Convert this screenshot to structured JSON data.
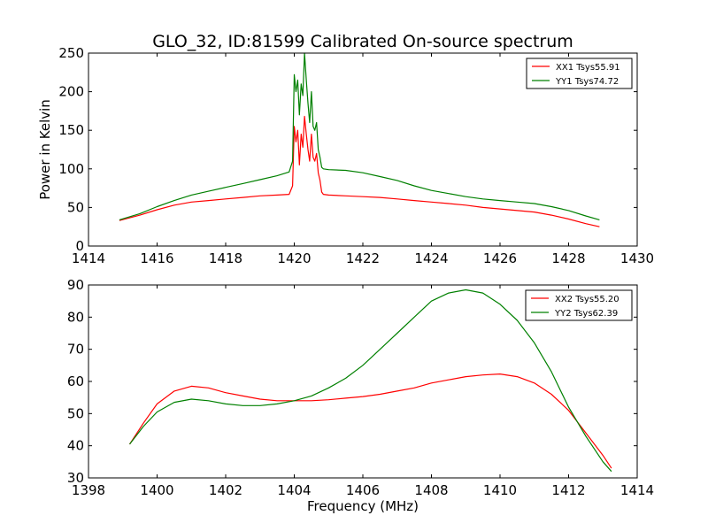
{
  "figure": {
    "title": "GLO_32, ID:81599 Calibrated On-source spectrum"
  },
  "chart_data": [
    {
      "type": "line",
      "title": "GLO_32, ID:81599 Calibrated On-source spectrum",
      "xlabel": "",
      "ylabel": "Power in Kelvin",
      "xlim": [
        1414,
        1430
      ],
      "ylim": [
        0,
        250
      ],
      "x_ticks": [
        1414,
        1416,
        1418,
        1420,
        1422,
        1424,
        1426,
        1428,
        1430
      ],
      "y_ticks": [
        0,
        50,
        100,
        150,
        200,
        250
      ],
      "grid": false,
      "legend_position": "top-right",
      "series": [
        {
          "name": "XX1 Tsys55.91",
          "color": "#ff0000",
          "x": [
            1414.9,
            1415.5,
            1416,
            1416.5,
            1417,
            1417.5,
            1418,
            1418.5,
            1419,
            1419.5,
            1419.85,
            1419.95,
            1420.0,
            1420.05,
            1420.1,
            1420.15,
            1420.2,
            1420.25,
            1420.3,
            1420.35,
            1420.4,
            1420.45,
            1420.5,
            1420.55,
            1420.6,
            1420.65,
            1420.7,
            1420.75,
            1420.8,
            1420.85,
            1421,
            1421.5,
            1422,
            1422.5,
            1423,
            1423.5,
            1424,
            1424.5,
            1425,
            1425.5,
            1426,
            1426.5,
            1427,
            1427.5,
            1428,
            1428.5,
            1428.9
          ],
          "values": [
            33,
            40,
            47,
            53,
            57,
            59,
            61,
            63,
            65,
            66,
            67,
            78,
            155,
            135,
            150,
            105,
            145,
            128,
            168,
            145,
            125,
            110,
            145,
            115,
            110,
            120,
            95,
            85,
            70,
            67,
            66,
            65,
            64,
            63,
            61,
            59,
            57,
            55,
            53,
            50,
            48,
            46,
            44,
            40,
            35,
            29,
            25
          ]
        },
        {
          "name": "YY1 Tsys74.72",
          "color": "#008000",
          "x": [
            1414.9,
            1415.5,
            1416,
            1416.5,
            1417,
            1417.5,
            1418,
            1418.5,
            1419,
            1419.5,
            1419.85,
            1419.95,
            1420.0,
            1420.05,
            1420.1,
            1420.15,
            1420.2,
            1420.25,
            1420.3,
            1420.35,
            1420.4,
            1420.45,
            1420.5,
            1420.55,
            1420.6,
            1420.65,
            1420.7,
            1420.75,
            1420.8,
            1420.85,
            1421,
            1421.5,
            1422,
            1422.5,
            1423,
            1423.5,
            1424,
            1424.5,
            1425,
            1425.5,
            1426,
            1426.5,
            1427,
            1427.5,
            1428,
            1428.5,
            1428.9
          ],
          "values": [
            34,
            42,
            51,
            59,
            66,
            71,
            76,
            81,
            86,
            91,
            96,
            110,
            222,
            200,
            215,
            170,
            210,
            195,
            250,
            215,
            185,
            160,
            200,
            155,
            150,
            160,
            125,
            115,
            102,
            100,
            99,
            98,
            95,
            90,
            85,
            78,
            72,
            68,
            64,
            61,
            59,
            57,
            55,
            51,
            46,
            39,
            34
          ]
        }
      ]
    },
    {
      "type": "line",
      "title": "",
      "xlabel": "Frequency (MHz)",
      "ylabel": "",
      "xlim": [
        1398,
        1414
      ],
      "ylim": [
        30,
        90
      ],
      "x_ticks": [
        1398,
        1400,
        1402,
        1404,
        1406,
        1408,
        1410,
        1412,
        1414
      ],
      "y_ticks": [
        30,
        40,
        50,
        60,
        70,
        80,
        90
      ],
      "grid": false,
      "legend_position": "top-right",
      "series": [
        {
          "name": "XX2 Tsys55.20",
          "color": "#ff0000",
          "x": [
            1399.2,
            1399.6,
            1400,
            1400.5,
            1401,
            1401.5,
            1402,
            1402.5,
            1403,
            1403.5,
            1404,
            1404.5,
            1405,
            1405.5,
            1406,
            1406.5,
            1407,
            1407.5,
            1408,
            1408.5,
            1409,
            1409.5,
            1410,
            1410.5,
            1411,
            1411.5,
            1412,
            1412.5,
            1413,
            1413.25
          ],
          "values": [
            40.5,
            47,
            53,
            57,
            58.5,
            58,
            56.5,
            55.5,
            54.5,
            54,
            54,
            54,
            54.3,
            54.8,
            55.3,
            56,
            57,
            58,
            59.5,
            60.5,
            61.5,
            62,
            62.3,
            61.5,
            59.5,
            56,
            51,
            44,
            37,
            33
          ]
        },
        {
          "name": "YY2 Tsys62.39",
          "color": "#008000",
          "x": [
            1399.2,
            1399.6,
            1400,
            1400.5,
            1401,
            1401.5,
            1402,
            1402.5,
            1403,
            1403.5,
            1404,
            1404.5,
            1405,
            1405.5,
            1406,
            1406.5,
            1407,
            1407.5,
            1408,
            1408.5,
            1409,
            1409.5,
            1410,
            1410.5,
            1411,
            1411.5,
            1412,
            1412.5,
            1413,
            1413.25
          ],
          "values": [
            40.5,
            46,
            50.5,
            53.5,
            54.5,
            54,
            53,
            52.5,
            52.5,
            53,
            54,
            55.5,
            58,
            61,
            65,
            70,
            75,
            80,
            85,
            87.5,
            88.5,
            87.5,
            84,
            79,
            72,
            63,
            52,
            43,
            35,
            32
          ]
        }
      ]
    }
  ]
}
